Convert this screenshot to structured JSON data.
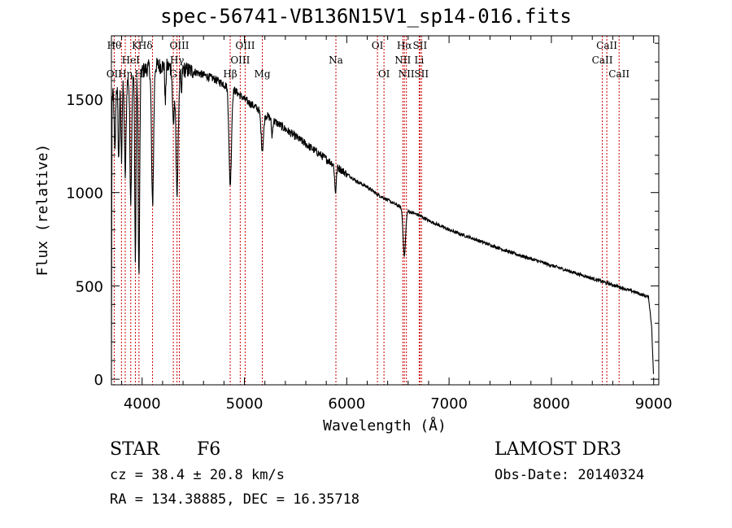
{
  "chart_data": {
    "type": "line",
    "title": "spec-56741-VB136N15V1_sp14-016.fits",
    "xlabel": "Wavelength (Å)",
    "ylabel": "Flux (relative)",
    "xlim": [
      3700,
      9050
    ],
    "ylim": [
      -30,
      1840
    ],
    "x_ticks": [
      4000,
      5000,
      6000,
      7000,
      8000,
      9000
    ],
    "y_ticks": [
      0,
      500,
      1000,
      1500
    ],
    "grid": false,
    "continuum": [
      [
        3700,
        0
      ],
      [
        3705,
        1500
      ],
      [
        3740,
        1560
      ],
      [
        3800,
        1580
      ],
      [
        3900,
        1620
      ],
      [
        4000,
        1650
      ],
      [
        4100,
        1680
      ],
      [
        4200,
        1680
      ],
      [
        4300,
        1670
      ],
      [
        4400,
        1660
      ],
      [
        4500,
        1650
      ],
      [
        4600,
        1630
      ],
      [
        4700,
        1610
      ],
      [
        4800,
        1580
      ],
      [
        4900,
        1550
      ],
      [
        5000,
        1500
      ],
      [
        5100,
        1460
      ],
      [
        5200,
        1420
      ],
      [
        5300,
        1380
      ],
      [
        5400,
        1340
      ],
      [
        5500,
        1300
      ],
      [
        5600,
        1260
      ],
      [
        5700,
        1220
      ],
      [
        5800,
        1180
      ],
      [
        5900,
        1140
      ],
      [
        6000,
        1100
      ],
      [
        6100,
        1060
      ],
      [
        6200,
        1030
      ],
      [
        6300,
        990
      ],
      [
        6400,
        960
      ],
      [
        6500,
        930
      ],
      [
        6600,
        900
      ],
      [
        6700,
        880
      ],
      [
        6800,
        850
      ],
      [
        6900,
        825
      ],
      [
        7000,
        800
      ],
      [
        7200,
        760
      ],
      [
        7400,
        720
      ],
      [
        7600,
        680
      ],
      [
        7800,
        645
      ],
      [
        8000,
        610
      ],
      [
        8200,
        575
      ],
      [
        8400,
        540
      ],
      [
        8600,
        505
      ],
      [
        8800,
        470
      ],
      [
        8950,
        440
      ],
      [
        8980,
        280
      ],
      [
        9000,
        0
      ]
    ],
    "absorption": [
      {
        "wave": 3734,
        "depth": 350,
        "width": 6
      },
      {
        "wave": 3771,
        "depth": 400,
        "width": 6
      },
      {
        "wave": 3798,
        "depth": 400,
        "width": 6
      },
      {
        "wave": 3835,
        "depth": 500,
        "width": 8
      },
      {
        "wave": 3889,
        "depth": 650,
        "width": 8
      },
      {
        "wave": 3934,
        "depth": 1000,
        "width": 6
      },
      {
        "wave": 3969,
        "depth": 1100,
        "width": 7
      },
      {
        "wave": 4102,
        "depth": 750,
        "width": 10
      },
      {
        "wave": 4227,
        "depth": 200,
        "width": 5
      },
      {
        "wave": 4305,
        "depth": 300,
        "width": 8
      },
      {
        "wave": 4341,
        "depth": 650,
        "width": 12
      },
      {
        "wave": 4384,
        "depth": 150,
        "width": 5
      },
      {
        "wave": 4861,
        "depth": 520,
        "width": 12
      },
      {
        "wave": 5175,
        "depth": 200,
        "width": 12
      },
      {
        "wave": 5270,
        "depth": 90,
        "width": 6
      },
      {
        "wave": 5890,
        "depth": 140,
        "width": 8
      },
      {
        "wave": 6563,
        "depth": 250,
        "width": 12
      }
    ],
    "lines": [
      {
        "name": "OII",
        "wave": 3727,
        "row": 2,
        "anchor": "middle"
      },
      {
        "name": "Hθ",
        "wave": 3798,
        "row": 0,
        "anchor": "end"
      },
      {
        "name": "Hη",
        "wave": 3835,
        "row": 2,
        "anchor": "middle"
      },
      {
        "name": "HeI",
        "wave": 3889,
        "row": 1,
        "anchor": "middle"
      },
      {
        "name": "K",
        "wave": 3934,
        "row": 0,
        "anchor": "middle"
      },
      {
        "name": "H",
        "wave": 3969,
        "row": 2,
        "anchor": "middle"
      },
      {
        "name": "Hδ",
        "wave": 4102,
        "row": 0,
        "anchor": "end"
      },
      {
        "name": "G",
        "wave": 4305,
        "row": 2,
        "anchor": "middle"
      },
      {
        "name": "OIII",
        "wave": 4364,
        "row": 0,
        "anchor": "middle"
      },
      {
        "name": "Hγ",
        "wave": 4341,
        "row": 1,
        "anchor": "middle"
      },
      {
        "name": "Hβ",
        "wave": 4861,
        "row": 2,
        "anchor": "middle"
      },
      {
        "name": "OIII",
        "wave": 4959,
        "row": 1,
        "anchor": "middle"
      },
      {
        "name": "OIII",
        "wave": 5007,
        "row": 0,
        "anchor": "middle"
      },
      {
        "name": "Mg",
        "wave": 5175,
        "row": 2,
        "anchor": "middle"
      },
      {
        "name": "Na",
        "wave": 5894,
        "row": 1,
        "anchor": "middle"
      },
      {
        "name": "OI",
        "wave": 6300,
        "row": 0,
        "anchor": "middle"
      },
      {
        "name": "OI",
        "wave": 6364,
        "row": 2,
        "anchor": "middle"
      },
      {
        "name": "NII",
        "wave": 6548,
        "row": 1,
        "anchor": "middle"
      },
      {
        "name": "Hα",
        "wave": 6563,
        "row": 0,
        "anchor": "middle"
      },
      {
        "name": "NII",
        "wave": 6583,
        "row": 2,
        "anchor": "middle"
      },
      {
        "name": "Li",
        "wave": 6708,
        "row": 1,
        "anchor": "middle"
      },
      {
        "name": "SII",
        "wave": 6716,
        "row": 0,
        "anchor": "middle"
      },
      {
        "name": "SII",
        "wave": 6731,
        "row": 2,
        "anchor": "middle"
      },
      {
        "name": "CaII",
        "wave": 8498,
        "row": 1,
        "anchor": "middle"
      },
      {
        "name": "CaII",
        "wave": 8542,
        "row": 0,
        "anchor": "middle"
      },
      {
        "name": "CaII",
        "wave": 8662,
        "row": 2,
        "anchor": "middle"
      }
    ]
  },
  "info": {
    "class_label": "STAR",
    "subclass": "F6",
    "survey": "LAMOST DR3",
    "cz": "cz = 38.4 ± 20.8 km/s",
    "obs_date": "Obs-Date: 20140324",
    "coords": "RA = 134.38885, DEC =  16.35718"
  },
  "colors": {
    "spectrum": "#000000",
    "line_markers": "#cc0000",
    "axes": "#000000"
  }
}
